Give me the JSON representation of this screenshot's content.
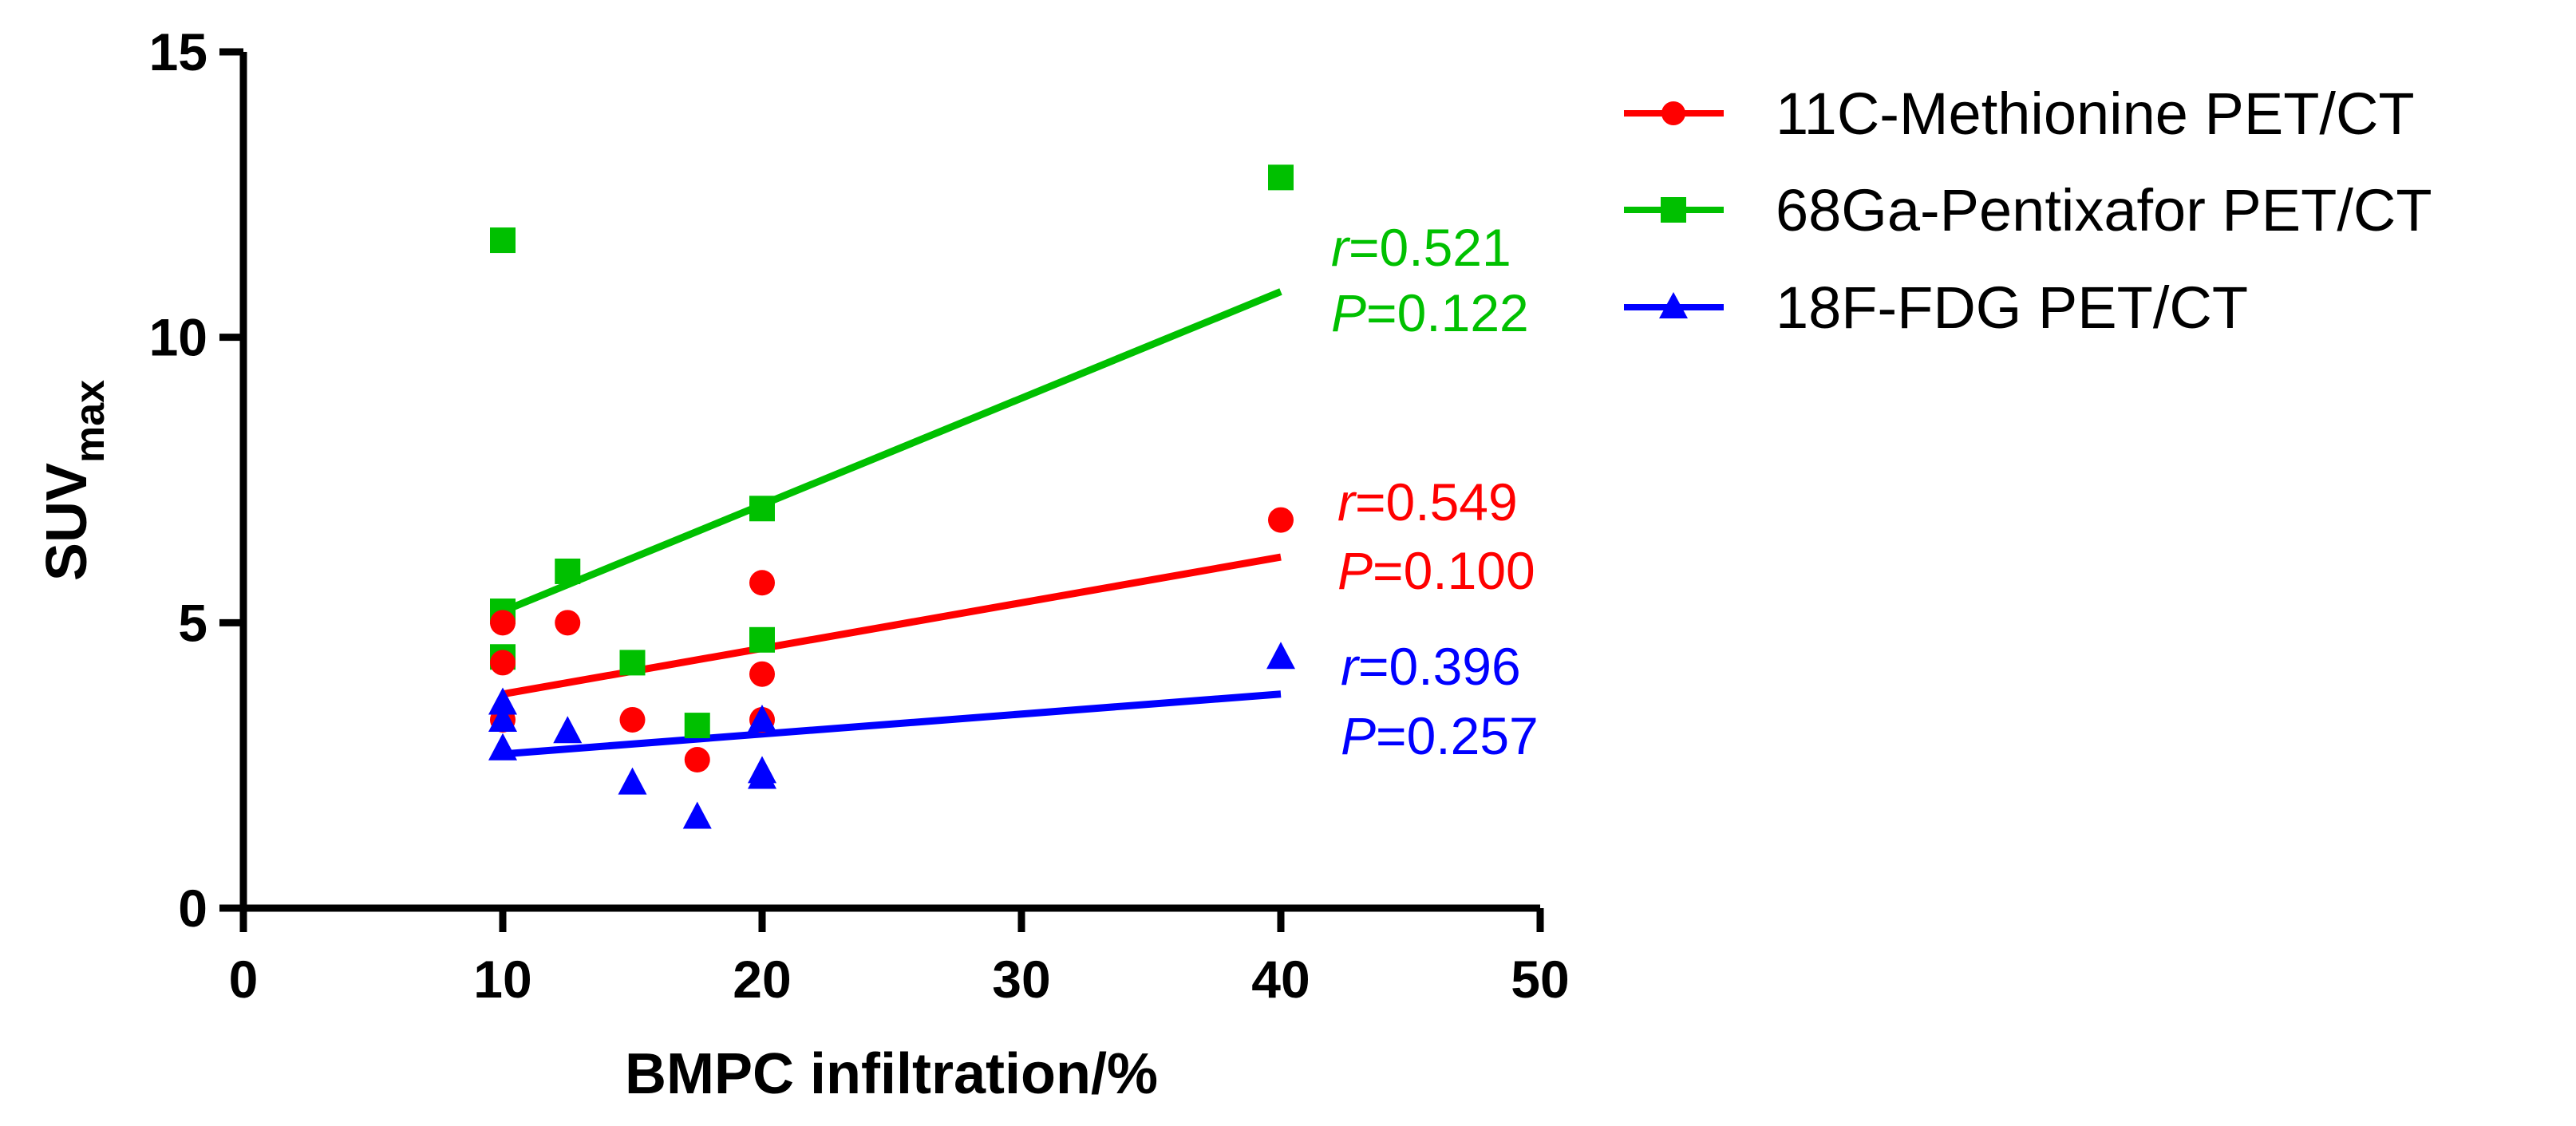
{
  "chart_data": {
    "type": "scatter",
    "title": "",
    "xlabel": "BMPC infiltration/%",
    "ylabel": "SUV",
    "ylabel_subscript": "max",
    "xlim": [
      0,
      50
    ],
    "ylim": [
      0,
      15
    ],
    "x_ticks": [
      "0",
      "10",
      "20",
      "30",
      "40",
      "50"
    ],
    "y_ticks": [
      "0",
      "5",
      "10",
      "15"
    ],
    "legend_position": "right",
    "series": [
      {
        "name": "11C-Methionine PET/CT",
        "color": "#ff0000",
        "marker": "circle",
        "points": [
          {
            "x": 10,
            "y": 5.0
          },
          {
            "x": 10,
            "y": 4.3
          },
          {
            "x": 10,
            "y": 3.3
          },
          {
            "x": 12.5,
            "y": 5.0
          },
          {
            "x": 15,
            "y": 3.3
          },
          {
            "x": 17.5,
            "y": 2.6
          },
          {
            "x": 20,
            "y": 5.7
          },
          {
            "x": 20,
            "y": 4.1
          },
          {
            "x": 20,
            "y": 3.3
          },
          {
            "x": 40,
            "y": 6.8
          }
        ],
        "fit": {
          "x_start": 10,
          "y_start": 3.75,
          "x_end": 40,
          "y_end": 6.15
        },
        "r_label": "r",
        "r_value": "=0.549",
        "p_label": "P",
        "p_value": "=0.100"
      },
      {
        "name": "68Ga-Pentixafor PET/CT",
        "color": "#00c000",
        "marker": "square",
        "points": [
          {
            "x": 10,
            "y": 11.7
          },
          {
            "x": 10,
            "y": 5.2
          },
          {
            "x": 10,
            "y": 4.4
          },
          {
            "x": 12.5,
            "y": 5.9
          },
          {
            "x": 15,
            "y": 4.3
          },
          {
            "x": 17.5,
            "y": 3.2
          },
          {
            "x": 20,
            "y": 7.0
          },
          {
            "x": 20,
            "y": 4.7
          },
          {
            "x": 40,
            "y": 12.8
          }
        ],
        "fit": {
          "x_start": 10,
          "y_start": 5.2,
          "x_end": 40,
          "y_end": 10.8
        },
        "r_label": "r",
        "r_value": "=0.521",
        "p_label": "P",
        "p_value": "=0.122"
      },
      {
        "name": "18F-FDG PET/CT",
        "color": "#0000ff",
        "marker": "triangle",
        "points": [
          {
            "x": 10,
            "y": 3.6
          },
          {
            "x": 10,
            "y": 3.3
          },
          {
            "x": 10,
            "y": 2.8
          },
          {
            "x": 12.5,
            "y": 3.1
          },
          {
            "x": 15,
            "y": 2.2
          },
          {
            "x": 17.5,
            "y": 1.6
          },
          {
            "x": 20,
            "y": 3.3
          },
          {
            "x": 20,
            "y": 2.4
          },
          {
            "x": 20,
            "y": 2.3
          },
          {
            "x": 40,
            "y": 4.4
          }
        ],
        "fit": {
          "x_start": 10,
          "y_start": 2.7,
          "x_end": 40,
          "y_end": 3.75
        },
        "r_label": "r",
        "r_value": "=0.396",
        "p_label": "P",
        "p_value": "=0.257"
      }
    ]
  }
}
